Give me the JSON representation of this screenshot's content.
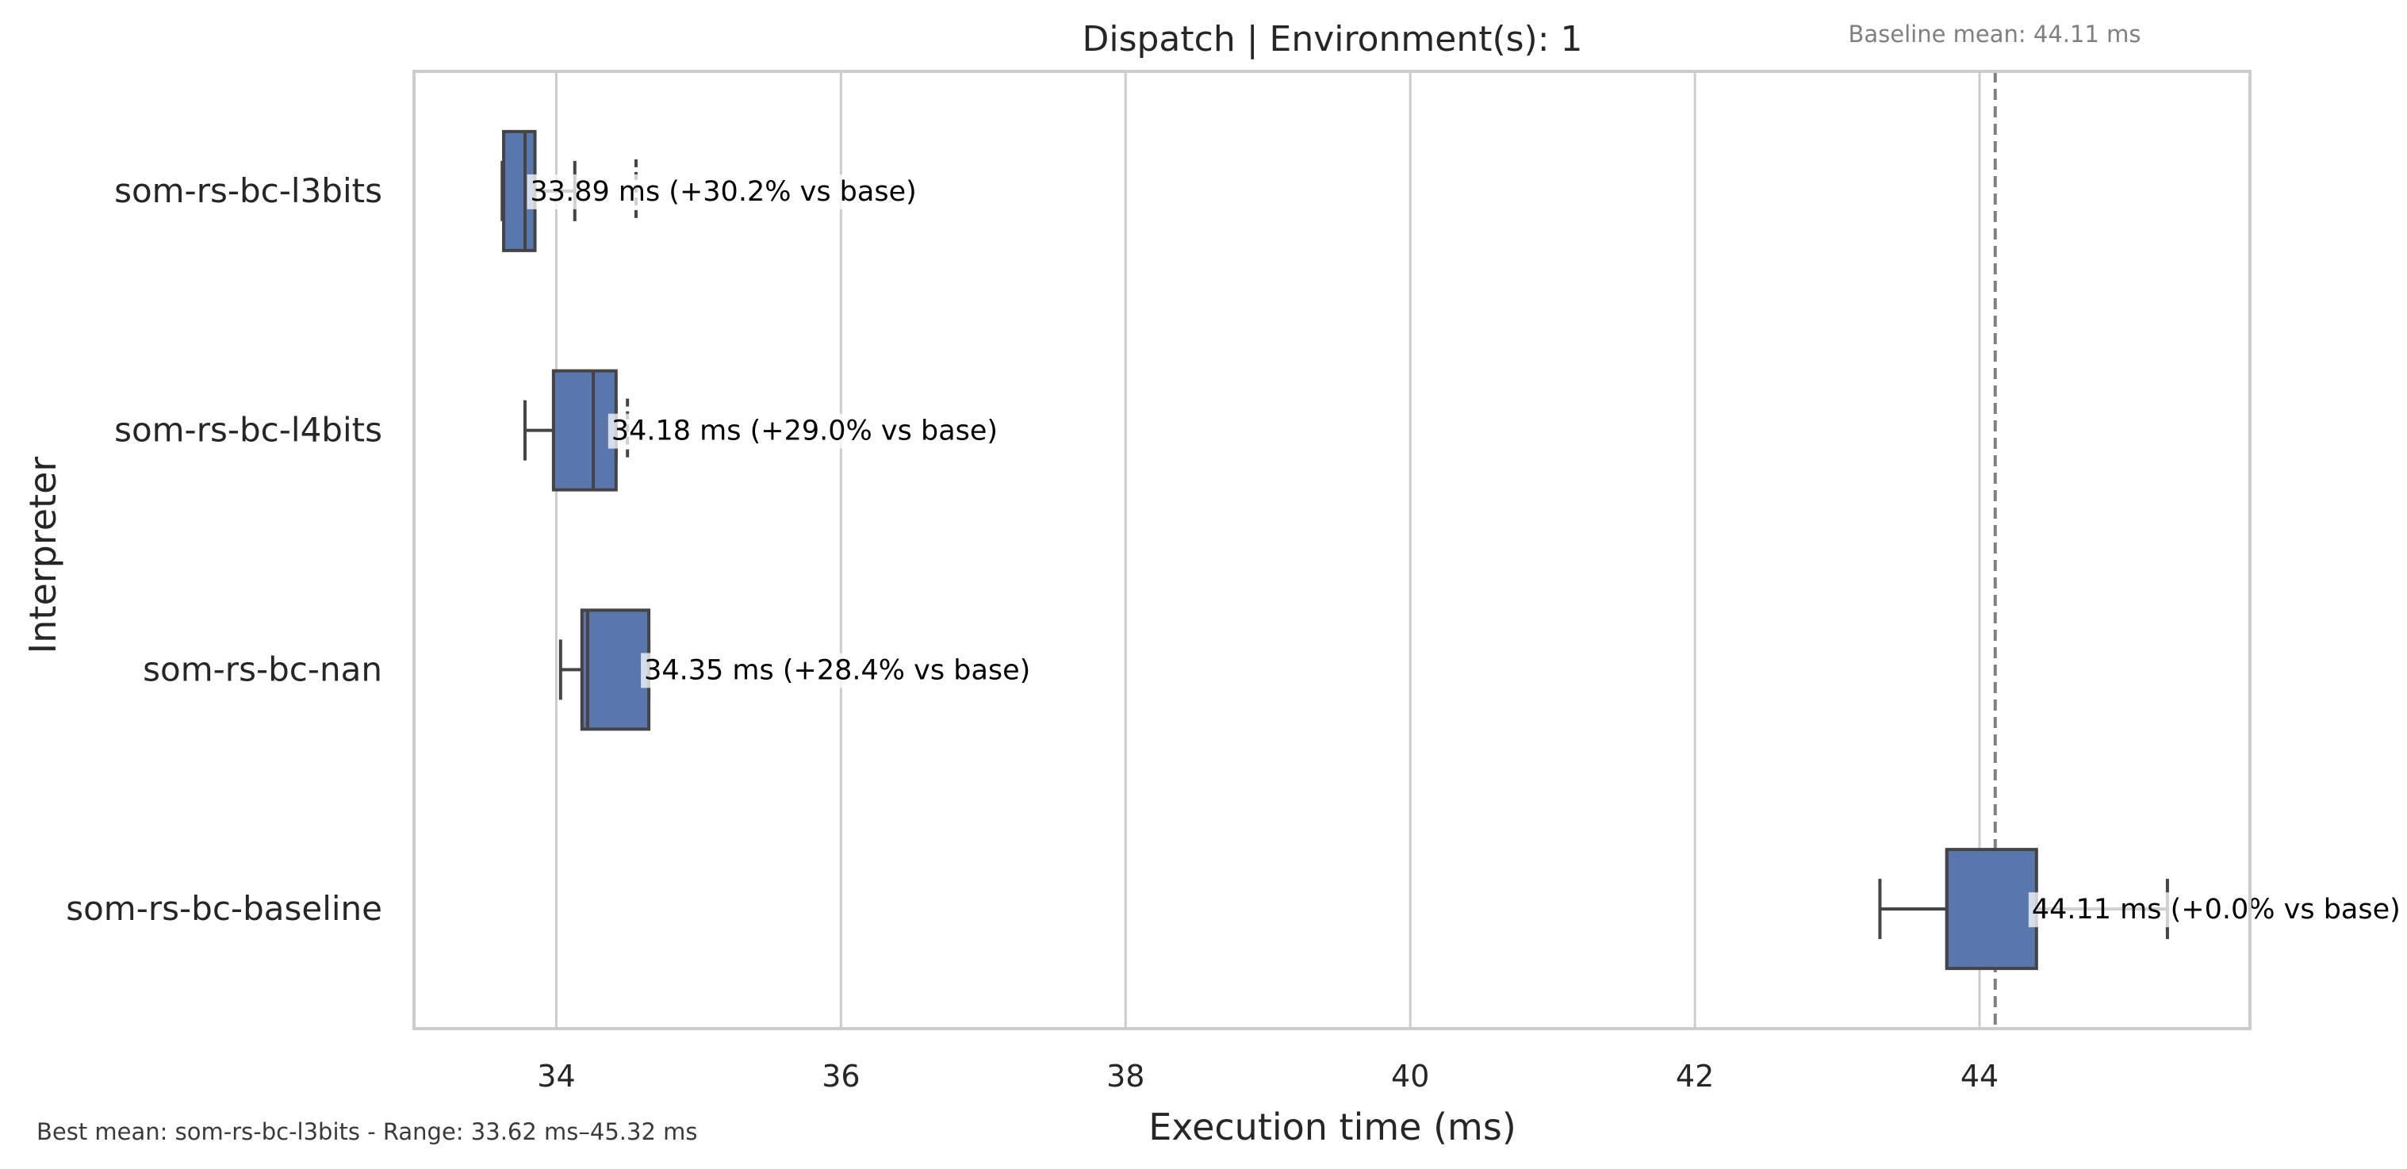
{
  "chart_data": {
    "type": "boxplot",
    "orientation": "horizontal",
    "title": "Dispatch | Environment(s): 1",
    "xlabel": "Execution time (ms)",
    "ylabel": "Interpreter",
    "xlim": [
      33.0,
      45.9
    ],
    "xticks": [
      34,
      36,
      38,
      40,
      42,
      44
    ],
    "grid": "vertical",
    "box_color": "#5a77ad",
    "line_color": "#444444",
    "baseline": {
      "value": 44.11,
      "label": "Baseline mean: 44.11 ms",
      "color": "#808080",
      "style": "dashed"
    },
    "footnote": "Best mean: som-rs-bc-l3bits - Range: 33.62 ms–45.32 ms",
    "categories": [
      "som-rs-bc-l3bits",
      "som-rs-bc-l4bits",
      "som-rs-bc-nan",
      "som-rs-bc-baseline"
    ],
    "boxes": [
      {
        "name": "som-rs-bc-l3bits",
        "whisker_low": 33.62,
        "q1": 33.63,
        "median": 33.78,
        "q3": 33.85,
        "whisker_high": 34.13,
        "outliers": [
          34.56
        ],
        "mean_label": "33.89 ms  (+30.2% vs base)"
      },
      {
        "name": "som-rs-bc-l4bits",
        "whisker_low": 33.78,
        "q1": 33.98,
        "median": 34.26,
        "q3": 34.42,
        "whisker_high": 34.42,
        "outliers": [
          34.5
        ],
        "mean_label": "34.18 ms  (+29.0% vs base)"
      },
      {
        "name": "som-rs-bc-nan",
        "whisker_low": 34.03,
        "q1": 34.18,
        "median": 34.22,
        "q3": 34.65,
        "whisker_high": 34.65,
        "outliers": [],
        "mean_label": "34.35 ms  (+28.4% vs base)"
      },
      {
        "name": "som-rs-bc-baseline",
        "whisker_low": 43.3,
        "q1": 43.77,
        "median": 43.77,
        "q3": 44.4,
        "whisker_high": 45.32,
        "outliers": [],
        "mean_label": "44.11 ms  (+0.0% vs base)"
      }
    ]
  }
}
